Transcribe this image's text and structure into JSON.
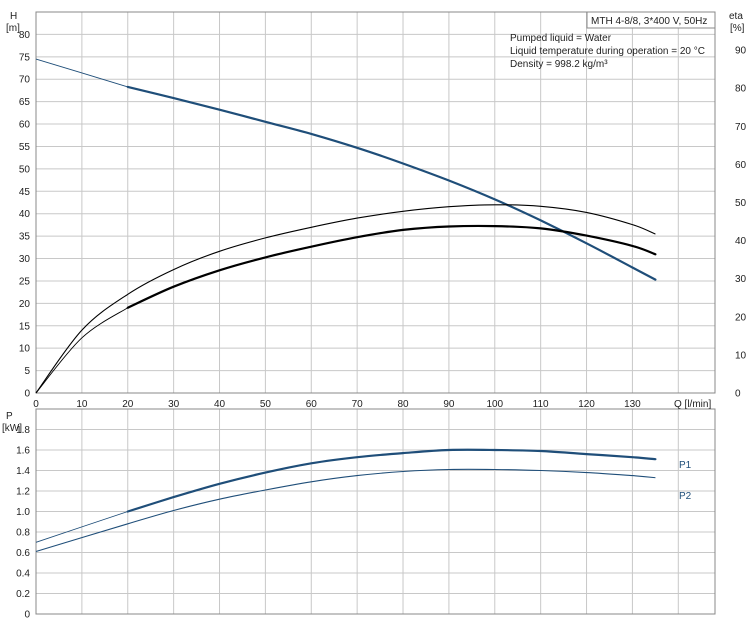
{
  "colors": {
    "blue": "#1f4e79",
    "black": "#000000",
    "grid": "#c8c8c8"
  },
  "info": {
    "model": "MTH 4-8/8, 3*400 V, 50Hz",
    "lines": [
      "Pumped liquid = Water",
      "Liquid temperature during operation = 20 °C",
      "Density = 998.2 kg/m³"
    ]
  },
  "chart_data": [
    {
      "type": "line",
      "title": "",
      "xlabel": "Q [l/min]",
      "ylabel": "H",
      "yunit": "[m]",
      "y2label": "eta",
      "y2unit": "[%]",
      "xlim": [
        0,
        148
      ],
      "ylim": [
        0,
        85
      ],
      "y2lim": [
        0,
        100
      ],
      "xticks": [
        0,
        10,
        20,
        30,
        40,
        50,
        60,
        70,
        80,
        90,
        100,
        110,
        120,
        130
      ],
      "yticks": [
        0,
        5,
        10,
        15,
        20,
        25,
        30,
        35,
        40,
        45,
        50,
        55,
        60,
        65,
        70,
        75,
        80
      ],
      "y2ticks": [
        0,
        10,
        20,
        30,
        40,
        50,
        60,
        70,
        80,
        90
      ],
      "grid": true,
      "series": [
        {
          "name": "",
          "axis": "H",
          "color": "#1f4e79",
          "style": "operating-range",
          "x": [
            0,
            20,
            30,
            40,
            50,
            60,
            70,
            80,
            90,
            100,
            110,
            120,
            130,
            135
          ],
          "y": [
            74.5,
            68.3,
            65.8,
            63.2,
            60.5,
            57.8,
            54.7,
            51.2,
            47.4,
            43.2,
            38.5,
            33.4,
            28.0,
            25.3
          ]
        },
        {
          "name": "",
          "axis": "eta",
          "color": "#000000",
          "style": "thin",
          "x": [
            0,
            10,
            20,
            30,
            40,
            50,
            60,
            70,
            80,
            90,
            100,
            110,
            120,
            130,
            135
          ],
          "y": [
            0,
            16.5,
            25.9,
            32.4,
            37.2,
            40.7,
            43.5,
            45.9,
            47.7,
            48.9,
            49.4,
            49.0,
            47.4,
            44.2,
            41.7
          ]
        },
        {
          "name": "",
          "axis": "eta",
          "color": "#000000",
          "style": "operating-range",
          "x": [
            0,
            10,
            20,
            30,
            40,
            50,
            60,
            70,
            80,
            90,
            100,
            110,
            120,
            130,
            135
          ],
          "y": [
            0,
            14.5,
            22.4,
            27.9,
            32.2,
            35.6,
            38.4,
            40.9,
            42.8,
            43.7,
            43.8,
            43.2,
            41.3,
            38.6,
            36.4
          ]
        }
      ]
    },
    {
      "type": "line",
      "title": "",
      "xlabel": "",
      "ylabel": "P",
      "yunit": "[kW]",
      "xlim": [
        0,
        148
      ],
      "ylim": [
        0,
        2.0
      ],
      "yticks": [
        0,
        0.2,
        0.4,
        0.6,
        0.8,
        1.0,
        1.2,
        1.4,
        1.6,
        1.8
      ],
      "ytick_labels": [
        "0",
        "0.2",
        "0.4",
        "0.6",
        "0.8",
        "1.0",
        "1.2",
        "1.4",
        "1.6",
        "1.8"
      ],
      "grid": true,
      "series": [
        {
          "name": "P1",
          "color": "#1f4e79",
          "style": "operating-range",
          "x": [
            0,
            20,
            30,
            40,
            50,
            60,
            70,
            80,
            90,
            100,
            110,
            120,
            130,
            135
          ],
          "y": [
            0.7,
            1.0,
            1.14,
            1.27,
            1.38,
            1.47,
            1.53,
            1.57,
            1.6,
            1.6,
            1.59,
            1.56,
            1.53,
            1.51
          ]
        },
        {
          "name": "P2",
          "color": "#1f4e79",
          "style": "thin",
          "x": [
            0,
            20,
            30,
            40,
            50,
            60,
            70,
            80,
            90,
            100,
            110,
            120,
            130,
            135
          ],
          "y": [
            0.61,
            0.88,
            1.01,
            1.12,
            1.21,
            1.29,
            1.35,
            1.39,
            1.41,
            1.41,
            1.4,
            1.38,
            1.35,
            1.33
          ]
        }
      ]
    }
  ]
}
